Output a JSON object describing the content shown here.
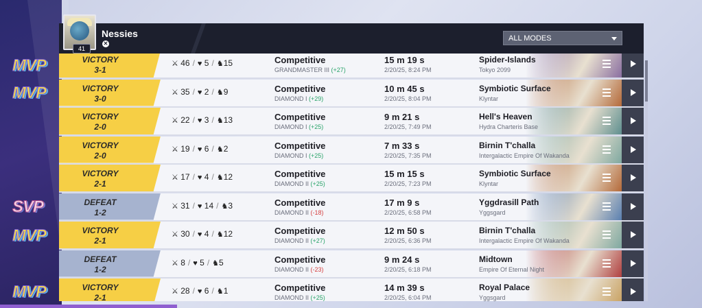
{
  "player": {
    "name": "Nessies",
    "level": "41",
    "platform_icon": "xbox-icon"
  },
  "mode_filter": {
    "selected": "ALL MODES"
  },
  "badges": [
    {
      "label": "MVP",
      "kind": "mvp"
    },
    {
      "label": "MVP",
      "kind": "mvp"
    },
    {
      "label": "SVP",
      "kind": "svp"
    },
    {
      "label": "MVP",
      "kind": "mvp"
    },
    {
      "label": "MVP",
      "kind": "mvp"
    }
  ],
  "matches": [
    {
      "result": "VICTORY",
      "score": "3-1",
      "kills": "46",
      "deaths": "5",
      "assists": "15",
      "mode": "Competitive",
      "rank": "GRANDMASTER III",
      "delta": "(+27)",
      "delta_sign": "gain",
      "duration": "15 m 19 s",
      "date": "2/20/25, 8:24 PM",
      "map": "Spider-Islands",
      "region": "Tokyo 2099",
      "map_color": "#8a6fa0"
    },
    {
      "result": "VICTORY",
      "score": "3-0",
      "kills": "35",
      "deaths": "2",
      "assists": "9",
      "mode": "Competitive",
      "rank": "DIAMOND I",
      "delta": "(+29)",
      "delta_sign": "gain",
      "duration": "10 m 45 s",
      "date": "2/20/25, 8:04 PM",
      "map": "Symbiotic Surface",
      "region": "Klyntar",
      "map_color": "#b46a3a"
    },
    {
      "result": "VICTORY",
      "score": "2-0",
      "kills": "22",
      "deaths": "3",
      "assists": "13",
      "mode": "Competitive",
      "rank": "DIAMOND I",
      "delta": "(+25)",
      "delta_sign": "gain",
      "duration": "9 m 21 s",
      "date": "2/20/25, 7:49 PM",
      "map": "Hell's Heaven",
      "region": "Hydra Charteris Base",
      "map_color": "#5f8f8f"
    },
    {
      "result": "VICTORY",
      "score": "2-0",
      "kills": "19",
      "deaths": "6",
      "assists": "2",
      "mode": "Competitive",
      "rank": "DIAMOND I",
      "delta": "(+25)",
      "delta_sign": "gain",
      "duration": "7 m 33 s",
      "date": "2/20/25, 7:35 PM",
      "map": "Birnin T'challa",
      "region": "Intergalactic Empire Of Wakanda",
      "map_color": "#7fa8a0"
    },
    {
      "result": "VICTORY",
      "score": "2-1",
      "kills": "17",
      "deaths": "4",
      "assists": "12",
      "mode": "Competitive",
      "rank": "DIAMOND II",
      "delta": "(+25)",
      "delta_sign": "gain",
      "duration": "15 m 15 s",
      "date": "2/20/25, 7:23 PM",
      "map": "Symbiotic Surface",
      "region": "Klyntar",
      "map_color": "#b46a3a"
    },
    {
      "result": "DEFEAT",
      "score": "1-2",
      "kills": "31",
      "deaths": "14",
      "assists": "3",
      "mode": "Competitive",
      "rank": "DIAMOND II",
      "delta": "(-18)",
      "delta_sign": "loss",
      "duration": "17 m 9 s",
      "date": "2/20/25, 6:58 PM",
      "map": "Yggdrasill Path",
      "region": "Yggsgard",
      "map_color": "#5a7fb0"
    },
    {
      "result": "VICTORY",
      "score": "2-1",
      "kills": "30",
      "deaths": "4",
      "assists": "12",
      "mode": "Competitive",
      "rank": "DIAMOND II",
      "delta": "(+27)",
      "delta_sign": "gain",
      "duration": "12 m 50 s",
      "date": "2/20/25, 6:36 PM",
      "map": "Birnin T'challa",
      "region": "Intergalactic Empire Of Wakanda",
      "map_color": "#7fa8a0"
    },
    {
      "result": "DEFEAT",
      "score": "1-2",
      "kills": "8",
      "deaths": "5",
      "assists": "5",
      "mode": "Competitive",
      "rank": "DIAMOND II",
      "delta": "(-23)",
      "delta_sign": "loss",
      "duration": "9 m 24 s",
      "date": "2/20/25, 6:18 PM",
      "map": "Midtown",
      "region": "Empire Of Eternal Night",
      "map_color": "#b04040"
    },
    {
      "result": "VICTORY",
      "score": "2-1",
      "kills": "28",
      "deaths": "6",
      "assists": "1",
      "mode": "Competitive",
      "rank": "DIAMOND II",
      "delta": "(+25)",
      "delta_sign": "gain",
      "duration": "14 m 39 s",
      "date": "2/20/25, 6:04 PM",
      "map": "Royal Palace",
      "region": "Yggsgard",
      "map_color": "#c8a060"
    }
  ]
}
